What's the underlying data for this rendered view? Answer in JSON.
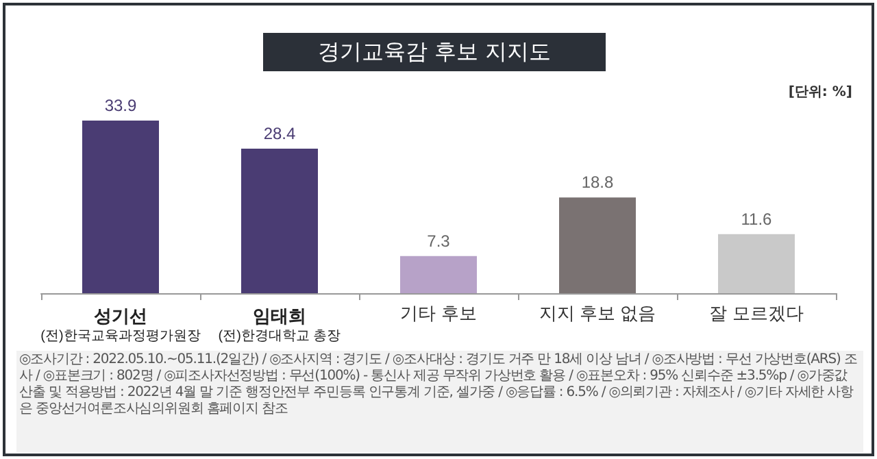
{
  "chart_data": {
    "type": "bar",
    "title": "경기교육감 후보 지지도",
    "subtitle": "[단위: %]",
    "categories": [
      "성기선\n(전)한국교육과정평가원장",
      "임태희\n(전)한경대학교 총장",
      "기타 후보",
      "지지 후보 없음",
      "잘 모르겠다"
    ],
    "values": [
      33.9,
      28.4,
      7.3,
      18.8,
      11.6
    ],
    "colors": [
      "#4a3c73",
      "#4a3c73",
      "#b7a2c8",
      "#7a7272",
      "#c9c9c9"
    ],
    "data_labels": true,
    "annotations": [
      "◎조사기간 : 2022.05.10.~05.11.(2일간) /",
      "◎조사지역 : 경기도 /",
      "◎조사대상 : 경기도 거주 만 18세 이상 남녀 /",
      "◎조사방법 : 무선 가상번호(ARS) 조사 /",
      "◎표본크기 : 802명 /",
      "◎피조사자선정방법 : 무선(100%) - 통신사 제공 무작위 가상번호 활용 /",
      "◎표본오차 : 95% 신뢰수준 ±3.5%p /",
      "◎가중값 산출 및 적용방법 : 2022년 4월 말 기준 행정안전부 주민등록 인구통계 기준, 셀가중 /",
      "◎응답률 : 6.5% /",
      "◎의뢰기관 : 자체조사 /",
      "◎기타 자세한 사항은 중앙선거여론조사심의위원회 홈페이지 참조"
    ]
  }
}
